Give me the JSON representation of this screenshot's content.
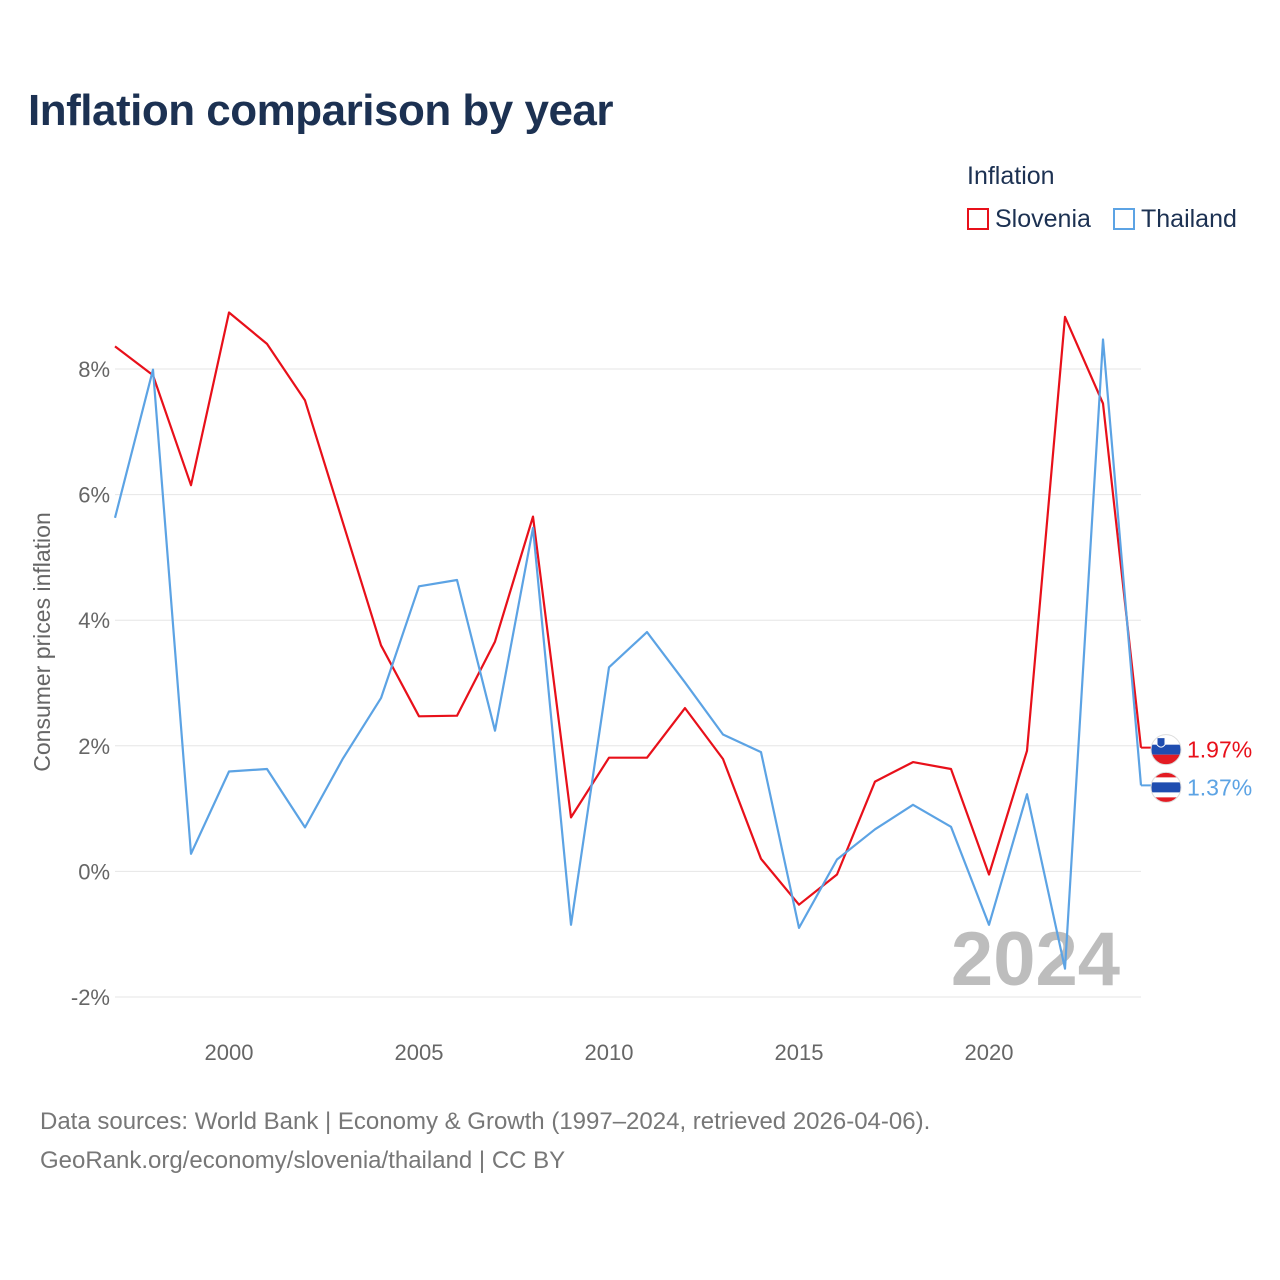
{
  "title": "Inflation comparison by year",
  "legend": {
    "title": "Inflation",
    "items": [
      {
        "name": "Slovenia",
        "color": "#e8101a"
      },
      {
        "name": "Thailand",
        "color": "#5ca3e4"
      }
    ]
  },
  "footer": {
    "line1": "Data sources: World Bank | Economy & Growth (1997–2024, retrieved 2026-04-06).",
    "line2": "GeoRank.org/economy/slovenia/thailand | CC BY"
  },
  "chart_data": {
    "type": "line",
    "title": "Inflation comparison by year",
    "xlabel": "",
    "ylabel": "Consumer prices inflation",
    "xlim": [
      1997,
      2024
    ],
    "ylim": [
      -2,
      8
    ],
    "yticks": [
      -2,
      0,
      2,
      4,
      6,
      8
    ],
    "ytick_labels": [
      "-2%",
      "0%",
      "2%",
      "4%",
      "6%",
      "8%"
    ],
    "xticks": [
      2000,
      2005,
      2010,
      2015,
      2020
    ],
    "xtick_labels": [
      "2000",
      "2005",
      "2010",
      "2015",
      "2020"
    ],
    "grid": true,
    "x": [
      1997,
      1998,
      1999,
      2000,
      2001,
      2002,
      2003,
      2004,
      2005,
      2006,
      2007,
      2008,
      2009,
      2010,
      2011,
      2012,
      2013,
      2014,
      2015,
      2016,
      2017,
      2018,
      2019,
      2020,
      2021,
      2022,
      2023,
      2024
    ],
    "series": [
      {
        "name": "Slovenia",
        "color": "#e8101a",
        "end_label": "1.97%",
        "values": [
          8.36,
          7.9,
          6.15,
          8.9,
          8.4,
          7.5,
          5.55,
          3.6,
          2.47,
          2.48,
          3.66,
          5.65,
          0.86,
          1.81,
          1.81,
          2.6,
          1.79,
          0.2,
          -0.53,
          -0.05,
          1.43,
          1.74,
          1.63,
          -0.05,
          1.92,
          8.83,
          7.45,
          1.97
        ]
      },
      {
        "name": "Thailand",
        "color": "#5ca3e4",
        "end_label": "1.37%",
        "values": [
          5.63,
          7.99,
          0.28,
          1.59,
          1.63,
          0.7,
          1.8,
          2.76,
          4.54,
          4.64,
          2.24,
          5.47,
          -0.85,
          3.25,
          3.81,
          3.01,
          2.18,
          1.9,
          -0.9,
          0.19,
          0.67,
          1.06,
          0.71,
          -0.85,
          1.23,
          -1.55,
          8.47,
          1.37
        ]
      }
    ],
    "year_watermark": "2024"
  }
}
